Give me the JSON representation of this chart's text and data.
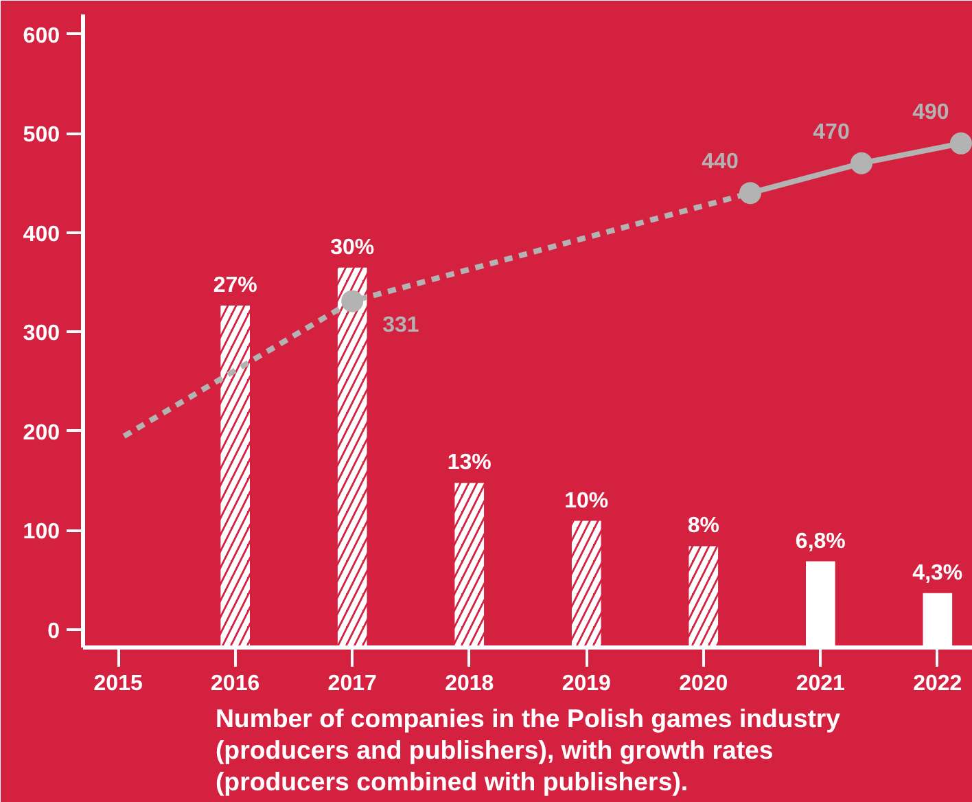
{
  "chart_data": {
    "type": "line",
    "title": "Number of companies in the Polish games industry\n(producers and publishers), with growth rates\n(producers combined with publishers).",
    "xlim": [
      2014.7,
      2022.3
    ],
    "xticks": [
      2015,
      2016,
      2017,
      2018,
      2019,
      2020,
      2021,
      2022
    ],
    "ylim": [
      -18,
      620
    ],
    "yticks": [
      0,
      100,
      200,
      300,
      400,
      500,
      600
    ],
    "y2lim": [
      0,
      50
    ],
    "grid": false,
    "series": [
      {
        "type": "bar",
        "axis": "y2",
        "line_style": "dashed",
        "color": "#ffffff",
        "x": [
          2016,
          2017,
          2018,
          2019,
          2020
        ],
        "values": [
          27,
          30,
          13,
          10,
          8
        ],
        "value_labels": [
          "27%",
          "30%",
          "13%",
          "10%",
          "8%"
        ]
      },
      {
        "type": "bar",
        "axis": "y2",
        "line_style": "solid",
        "color": "#ffffff",
        "x": [
          2021,
          2022
        ],
        "values": [
          6.8,
          4.3
        ],
        "value_labels": [
          "6,8%",
          "4,3%"
        ]
      },
      {
        "line_style": "dashed",
        "marker": "none",
        "color": "#b3b3b3",
        "x": [
          2015.05,
          2017,
          2020.4
        ],
        "values": [
          195,
          331,
          440
        ],
        "value_labels": [
          null,
          null,
          null
        ]
      },
      {
        "type": "scatter",
        "marker": "circle",
        "color": "#b3b3b3",
        "x": [
          2017
        ],
        "values": [
          331
        ],
        "value_labels": [
          "331"
        ]
      },
      {
        "line_style": "solid",
        "marker": "circle",
        "color": "#b3b3b3",
        "x": [
          2020.4,
          2021.35,
          2022.2
        ],
        "values": [
          440,
          470,
          490
        ],
        "value_labels": [
          "440",
          "470",
          "490"
        ]
      }
    ]
  }
}
